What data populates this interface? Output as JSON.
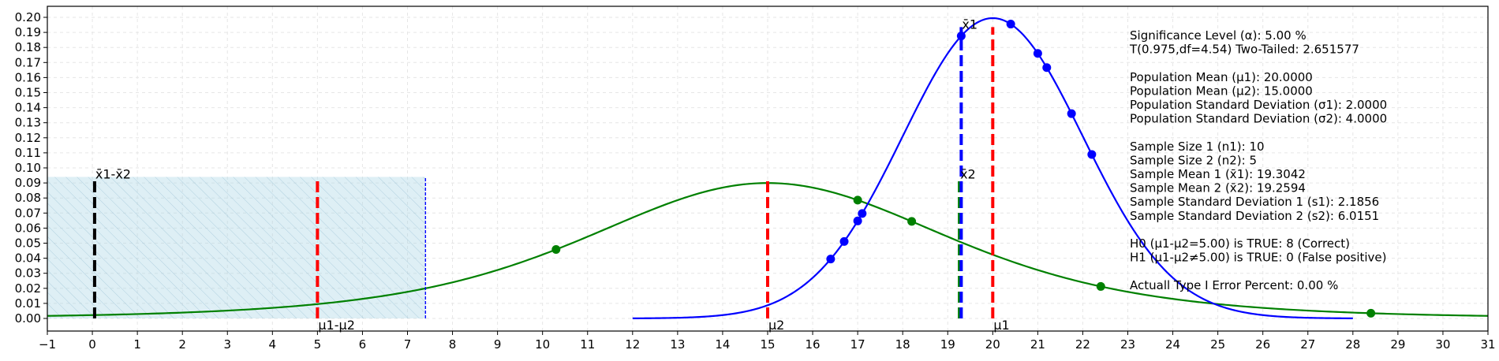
{
  "chart_data": {
    "type": "line",
    "xlim": [
      -1,
      31
    ],
    "ylim": [
      0,
      0.2
    ],
    "x_ticks": [
      -1,
      0,
      1,
      2,
      3,
      4,
      5,
      6,
      7,
      8,
      9,
      10,
      11,
      12,
      13,
      14,
      15,
      16,
      17,
      18,
      19,
      20,
      21,
      22,
      23,
      24,
      25,
      26,
      27,
      28,
      29,
      30,
      31
    ],
    "y_ticks": [
      0.0,
      0.01,
      0.02,
      0.03,
      0.04,
      0.05,
      0.06,
      0.07,
      0.08,
      0.09,
      0.1,
      0.11,
      0.12,
      0.13,
      0.14,
      0.15,
      0.16,
      0.17,
      0.18,
      0.19,
      0.2
    ],
    "grid": true,
    "series": [
      {
        "kind": "t-density",
        "color": "#008000",
        "center": 15,
        "scale": 4.2,
        "df": 4.54,
        "x_range": [
          -1,
          31
        ],
        "points_x": [
          10.3,
          17.0,
          18.2,
          22.4,
          28.4
        ]
      },
      {
        "kind": "normal-density",
        "color": "#0000ff",
        "center": 20,
        "scale": 2.0,
        "x_range": [
          12,
          28
        ],
        "points_x": [
          16.4,
          16.7,
          17.0,
          17.1,
          19.3,
          20.4,
          21.0,
          21.2,
          21.75,
          22.2
        ]
      }
    ],
    "shaded_region": {
      "x": [
        -1,
        7.4
      ],
      "y_top": 0.094,
      "color": "#add8e6"
    },
    "vlines": [
      {
        "x": 0.05,
        "y_top": 0.094,
        "color": "#000000",
        "style": "dashed",
        "label": "x̄1-x̄2"
      },
      {
        "x": 5,
        "y_top": 0.094,
        "color": "#ff0000",
        "style": "dashed",
        "label": "μ1-μ2"
      },
      {
        "x": 7.4,
        "y_top": 0.094,
        "color": "#0000ff",
        "style": "dotted-thin",
        "label": ""
      },
      {
        "x": 15,
        "y_top": 0.094,
        "color": "#ff0000",
        "style": "dashed",
        "label": "μ2"
      },
      {
        "x": 19.26,
        "y_top": 0.094,
        "color": "#008000",
        "style": "dashed",
        "label": "x̄2"
      },
      {
        "x": 19.3,
        "y_top": 0.1935,
        "color": "#0000ff",
        "style": "dashed",
        "label": "x̄1"
      },
      {
        "x": 20,
        "y_top": 0.1935,
        "color": "#ff0000",
        "style": "dashed",
        "label": "μ1"
      }
    ],
    "info_lines": [
      "Significance Level (α): 5.00 %",
      "T(0.975,df=4.54) Two-Tailed: 2.651577",
      "",
      "Population Mean (μ1): 20.0000",
      "Population Mean (μ2): 15.0000",
      "Population Standard Deviation (σ1): 2.0000",
      "Population Standard Deviation (σ2): 4.0000",
      "",
      "Sample Size 1 (n1): 10",
      "Sample Size 2 (n2): 5",
      "Sample Mean 1 (x̄1): 19.3042",
      "Sample Mean 2 (x̄2): 19.2594",
      "Sample Standard Deviation 1 (s1): 2.1856",
      "Sample Standard Deviation 2 (s2): 6.0151",
      "",
      "H0 (μ1-μ2=5.00) is TRUE: 8 (Correct)",
      "H1 (μ1-μ2≠5.00) is TRUE: 0 (False positive)",
      "",
      "Actuall Type I Error Percent: 0.00 %"
    ]
  }
}
